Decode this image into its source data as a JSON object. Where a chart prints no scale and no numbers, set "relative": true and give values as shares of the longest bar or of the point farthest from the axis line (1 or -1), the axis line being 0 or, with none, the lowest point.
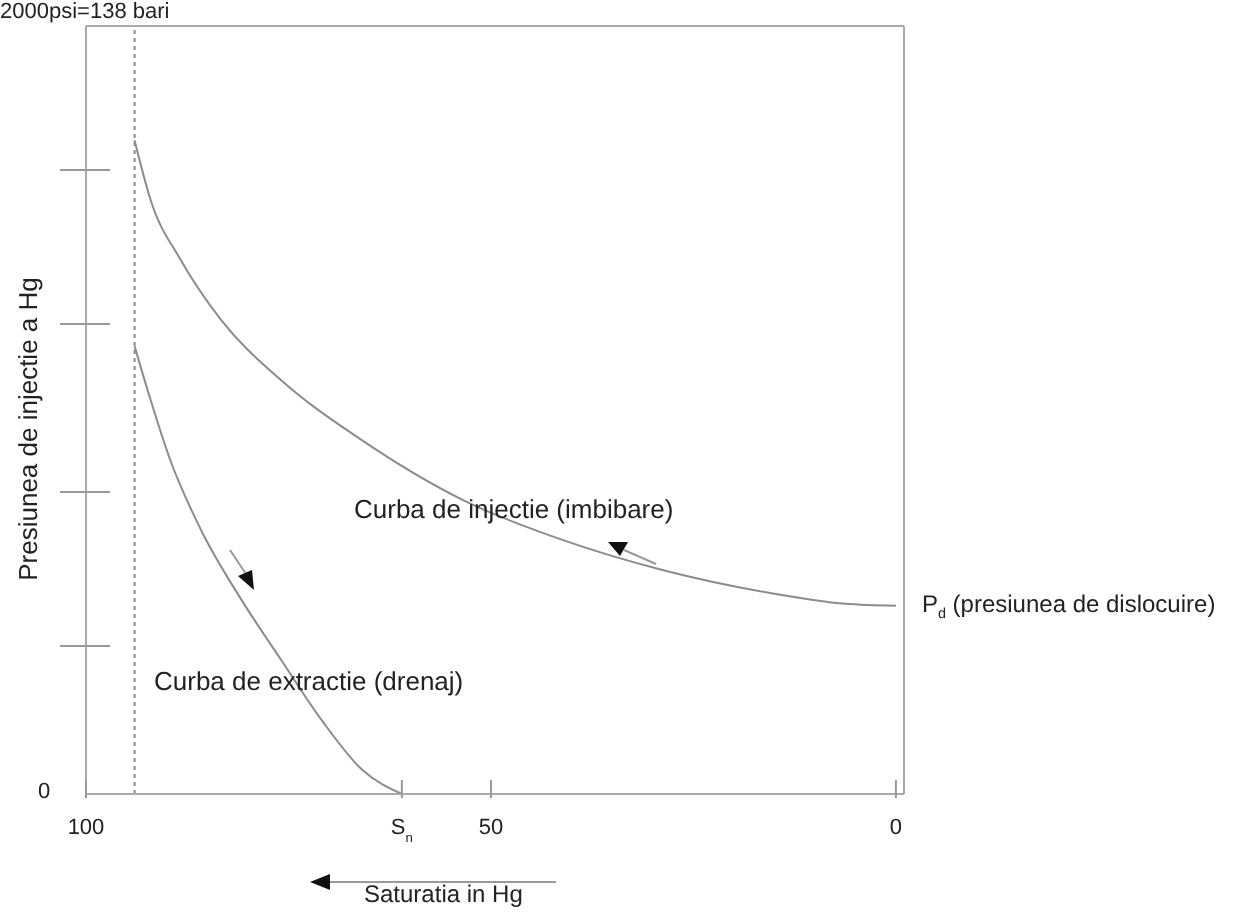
{
  "chart_data": {
    "type": "line",
    "relative": true,
    "xlabel": "Saturatia in Hg",
    "ylabel": "Presiunea de injectie a Hg",
    "xlim": [
      100,
      -1
    ],
    "xticks": [
      100,
      {
        "value": 61,
        "label": "S$_{n}$"
      },
      50,
      0
    ],
    "series": [
      {
        "color": "#8c8c8c",
        "x": [
          94,
          92,
          88.3,
          83.3,
          75.9,
          65.9,
          53.5,
          41,
          28.6,
          16.2,
          6.2,
          0
        ],
        "values": [
          1,
          0.908,
          0.817,
          0.725,
          0.633,
          0.541,
          0.45,
          0.388,
          0.342,
          0.309,
          0.291,
          0.288
        ]
      },
      {
        "color": "#8c8c8c",
        "x": [
          94,
          92,
          89.6,
          85.8,
          80.8,
          75.9,
          70.9,
          65.9,
          61
        ],
        "values": [
          0.685,
          0.602,
          0.511,
          0.404,
          0.297,
          0.205,
          0.113,
          0.037,
          0
        ]
      }
    ],
    "ref_lines": [
      {
        "axis": "x",
        "value": 94,
        "color": "#8c8c8c",
        "line_style": "dotted"
      }
    ],
    "annotations": [
      "Curba de injectie (imbibare)",
      "Curba de extractie (drenaj)",
      {
        "text": "P$_{d}$ (presiunea de dislocuire)",
        "x": 0,
        "y": 0.288
      },
      "2000psi=138 bari",
      "0"
    ]
  }
}
